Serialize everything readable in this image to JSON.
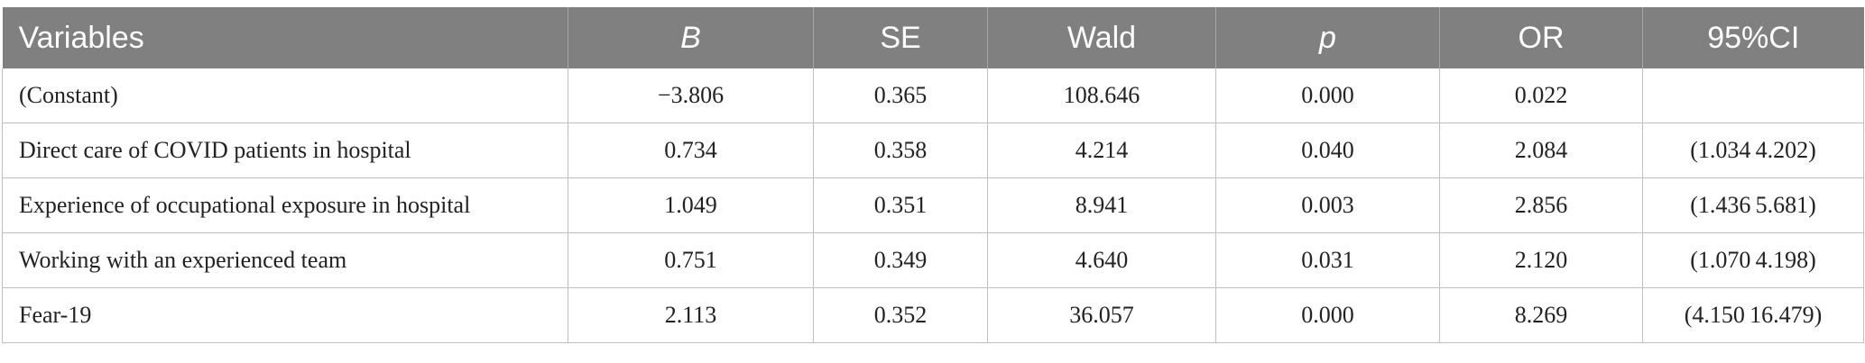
{
  "table": {
    "headers": [
      "Variables",
      "B",
      "SE",
      "Wald",
      "p",
      "OR",
      "95%CI"
    ],
    "rows": [
      [
        "(Constant)",
        "−3.806",
        "0.365",
        "108.646",
        "0.000",
        "0.022",
        ""
      ],
      [
        "Direct care of COVID patients in hospital",
        "0.734",
        "0.358",
        "4.214",
        "0.040",
        "2.084",
        "(1.034 4.202)"
      ],
      [
        "Experience of occupational exposure in hospital",
        "1.049",
        "0.351",
        "8.941",
        "0.003",
        "2.856",
        "(1.436 5.681)"
      ],
      [
        "Working with an experienced team",
        "0.751",
        "0.349",
        "4.640",
        "0.031",
        "2.120",
        "(1.070 4.198)"
      ],
      [
        "Fear-19",
        "2.113",
        "0.352",
        "36.057",
        "0.000",
        "8.269",
        "(4.150 16.479)"
      ]
    ]
  }
}
